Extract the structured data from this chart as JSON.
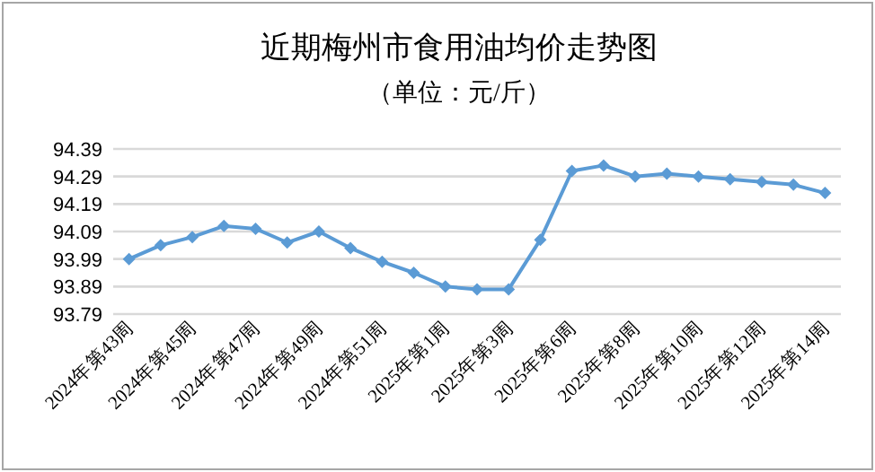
{
  "chart_data": {
    "type": "line",
    "title": "近期梅州市食用油均价走势图",
    "subtitle": "（单位：元/斤）",
    "categories": [
      "2024年第43周",
      null,
      "2024年第45周",
      null,
      "2024年第47周",
      null,
      "2024年第49周",
      null,
      "2024年第51周",
      null,
      "2025年第1周",
      null,
      "2025年第3周",
      null,
      "2025年第6周",
      null,
      "2025年第8周",
      null,
      "2025年第10周",
      null,
      "2025年第12周",
      null,
      "2025年第14周"
    ],
    "series": [
      {
        "color": "#5b9bd5",
        "values": [
          93.99,
          94.04,
          94.07,
          94.11,
          94.1,
          94.05,
          94.09,
          94.03,
          93.98,
          93.94,
          93.89,
          93.88,
          93.88,
          94.06,
          94.31,
          94.33,
          94.29,
          94.3,
          94.29,
          94.28,
          94.27,
          94.26,
          94.23
        ]
      }
    ],
    "ylim": [
      93.79,
      94.39
    ],
    "yticks": [
      {
        "value": 93.79,
        "label": "93.79"
      },
      {
        "value": 93.89,
        "label": "93.89"
      },
      {
        "value": 93.99,
        "label": "93.99"
      },
      {
        "value": 94.09,
        "label": "94.09"
      },
      {
        "value": 94.19,
        "label": "94.19"
      },
      {
        "value": 94.29,
        "label": "94.29"
      },
      {
        "value": 94.39,
        "label": "94.39"
      }
    ],
    "grid": "y",
    "marker": "diamond"
  }
}
